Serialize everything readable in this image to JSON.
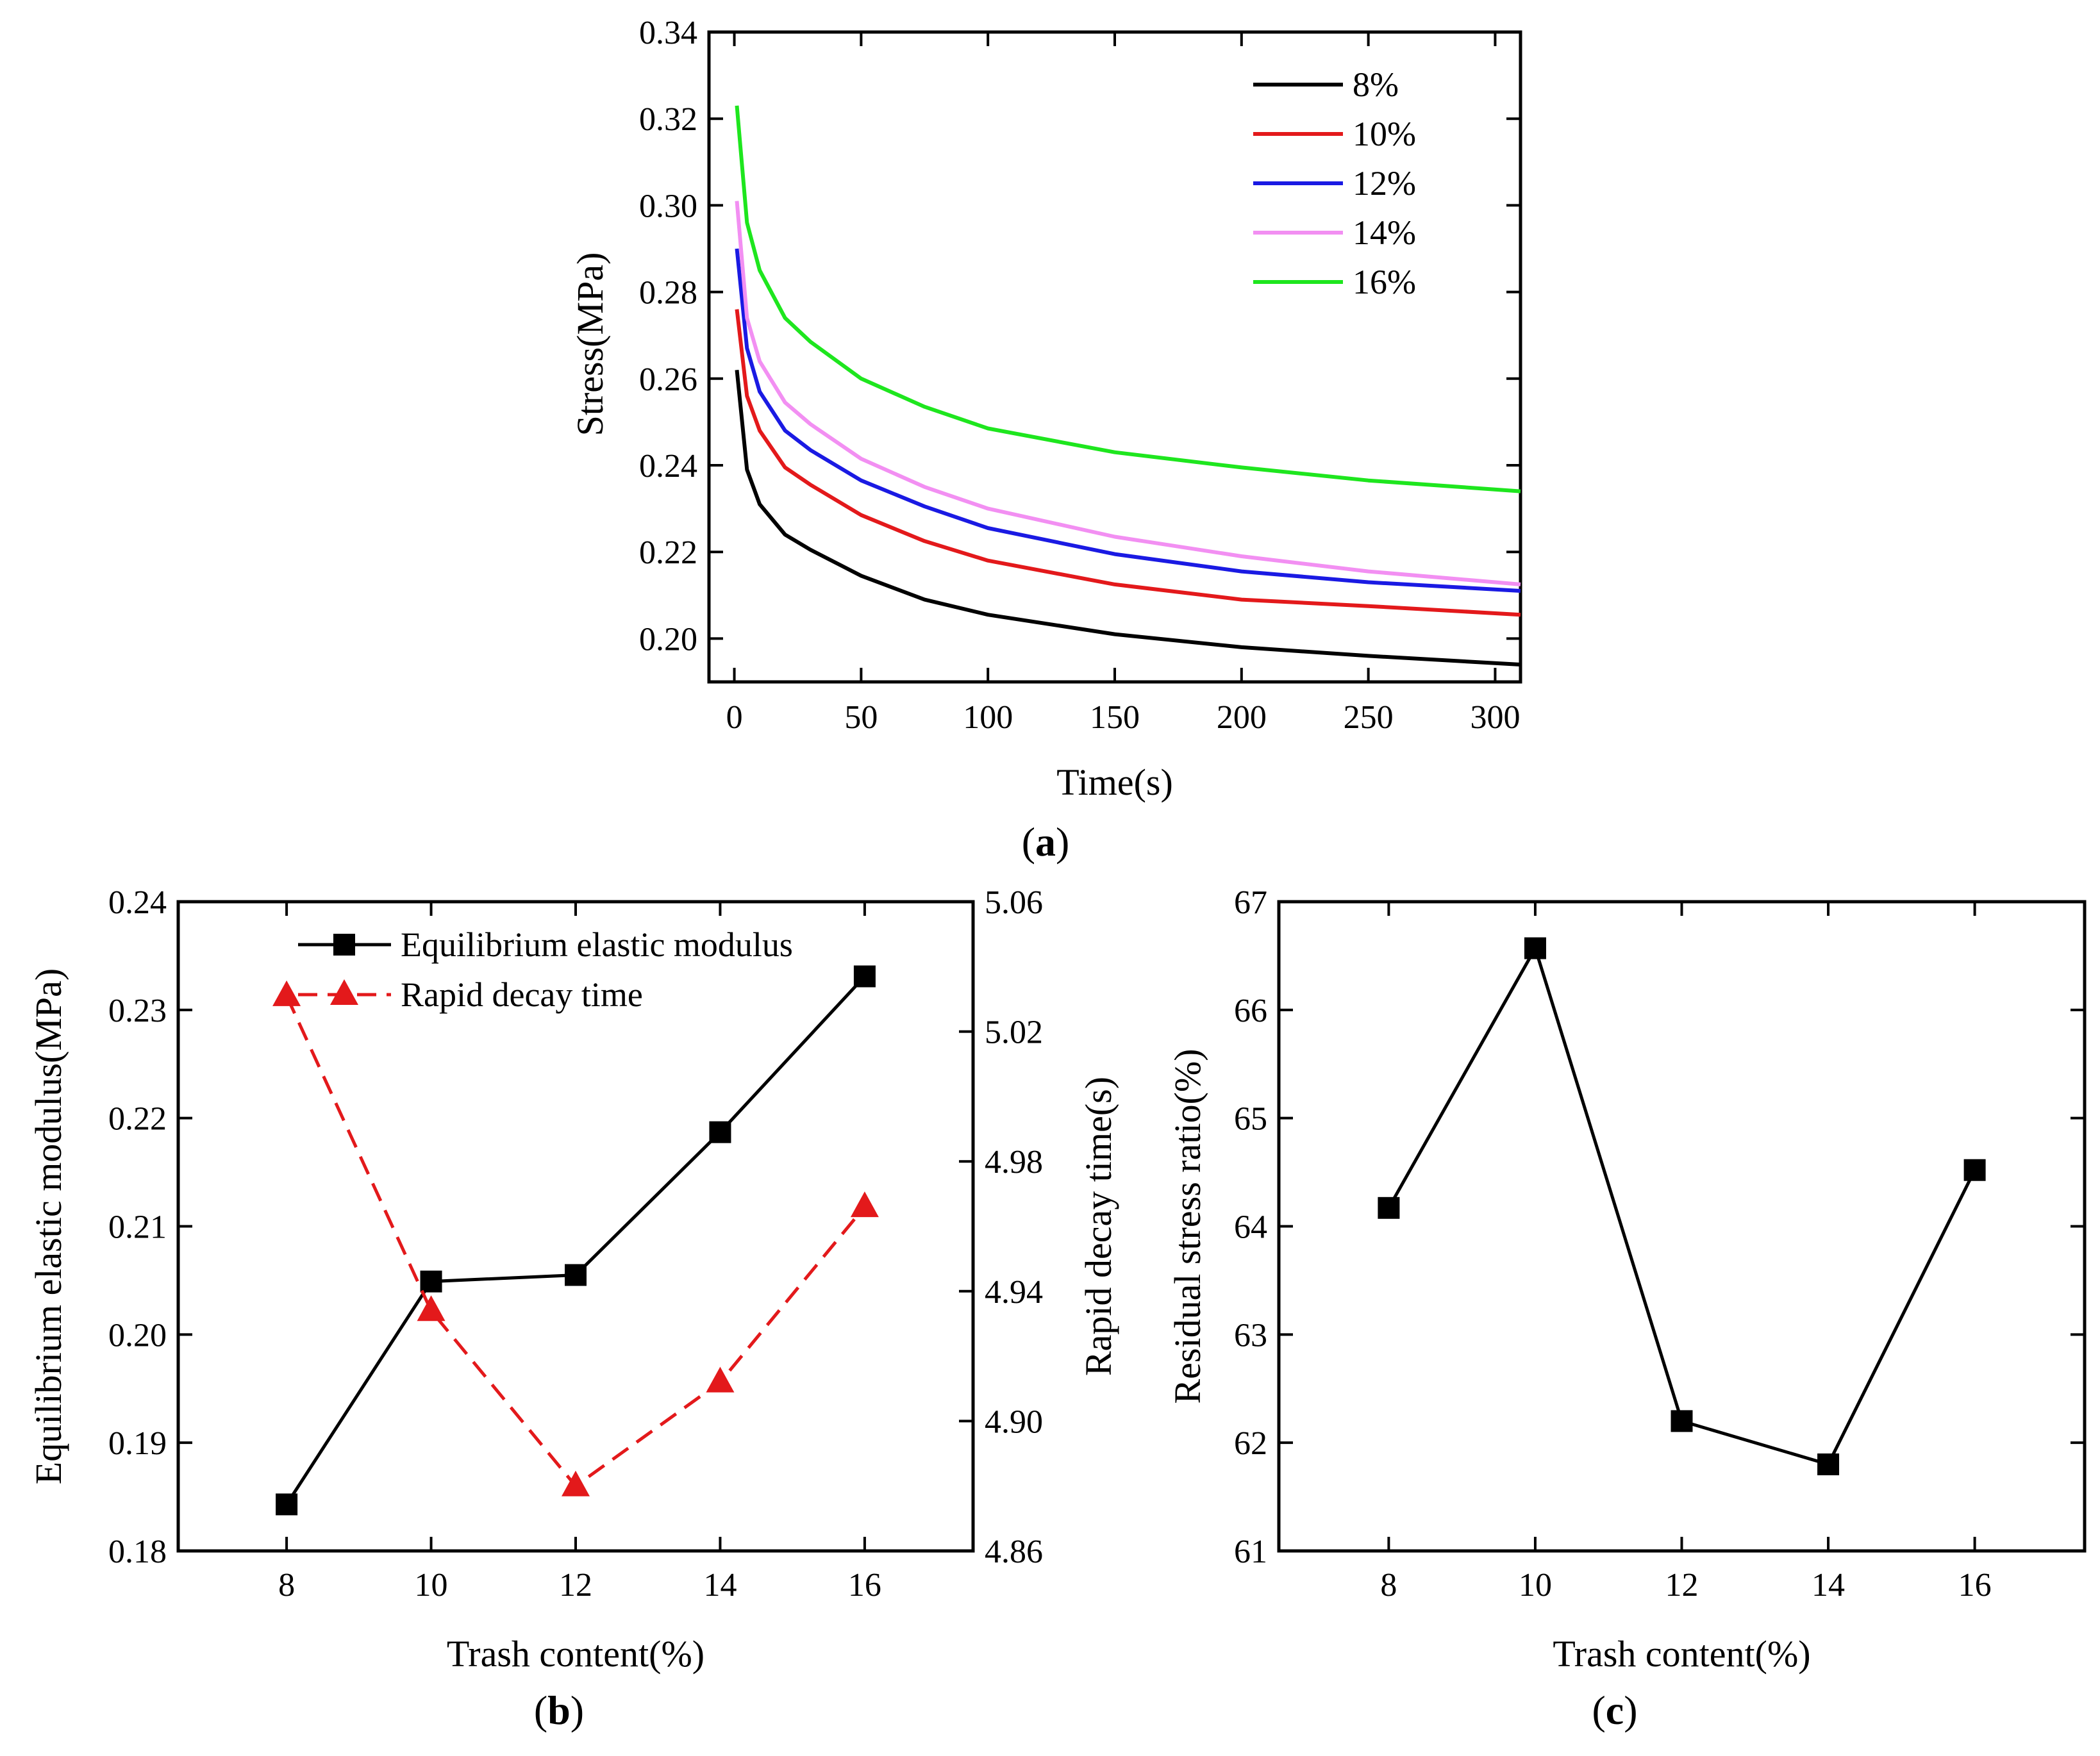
{
  "chart_data": [
    {
      "panel": "a",
      "type": "line",
      "xlabel": "Time(s)",
      "ylabel": "Stress(MPa)",
      "xlim": [
        -10,
        310
      ],
      "ylim": [
        0.19,
        0.34
      ],
      "xticks": [
        "0",
        "50",
        "100",
        "150",
        "200",
        "250",
        "300"
      ],
      "yticks": [
        "0.20",
        "0.22",
        "0.24",
        "0.26",
        "0.28",
        "0.30",
        "0.32",
        "0.34"
      ],
      "legend_position": "top-right",
      "x": [
        1,
        5,
        10,
        20,
        30,
        50,
        75,
        100,
        150,
        200,
        250,
        310
      ],
      "series": [
        {
          "name": "8%",
          "color": "#000000",
          "values": [
            0.262,
            0.239,
            0.231,
            0.224,
            0.2205,
            0.2145,
            0.209,
            0.2055,
            0.201,
            0.198,
            0.196,
            0.194
          ]
        },
        {
          "name": "10%",
          "color": "#e3191b",
          "values": [
            0.276,
            0.256,
            0.248,
            0.2395,
            0.2355,
            0.2285,
            0.2225,
            0.218,
            0.2125,
            0.209,
            0.2075,
            0.2055
          ]
        },
        {
          "name": "12%",
          "color": "#1a1ae3",
          "values": [
            0.29,
            0.267,
            0.257,
            0.248,
            0.2435,
            0.2365,
            0.2305,
            0.2255,
            0.2195,
            0.2155,
            0.213,
            0.211
          ]
        },
        {
          "name": "14%",
          "color": "#f28ff2",
          "values": [
            0.301,
            0.274,
            0.264,
            0.2545,
            0.2495,
            0.2415,
            0.235,
            0.23,
            0.2235,
            0.219,
            0.2155,
            0.2125
          ]
        },
        {
          "name": "16%",
          "color": "#1ee61e",
          "values": [
            0.323,
            0.296,
            0.285,
            0.274,
            0.2685,
            0.26,
            0.2535,
            0.2485,
            0.243,
            0.2395,
            0.2365,
            0.234
          ]
        }
      ]
    },
    {
      "panel": "b",
      "type": "line",
      "xlabel": "Trash content(%)",
      "ylabel": "Equilibrium elastic modulus(MPa)",
      "y2label": "Rapid decay time(s)",
      "xlim": [
        6.5,
        17.5
      ],
      "ylim": [
        0.18,
        0.24
      ],
      "y2lim": [
        4.86,
        5.06
      ],
      "xticks": [
        "8",
        "10",
        "12",
        "14",
        "16"
      ],
      "yticks": [
        "0.18",
        "0.19",
        "0.20",
        "0.21",
        "0.22",
        "0.23",
        "0.24"
      ],
      "y2ticks": [
        "4.86",
        "4.90",
        "4.94",
        "4.98",
        "5.02",
        "5.06"
      ],
      "legend_position": "top-center",
      "x": [
        8,
        10,
        12,
        14,
        16
      ],
      "series": [
        {
          "name": "Equilibrium elastic modulus",
          "axis": "left",
          "color": "#000000",
          "marker": "square",
          "dash": "solid",
          "values": [
            0.1843,
            0.2049,
            0.2055,
            0.2187,
            0.2331
          ]
        },
        {
          "name": "Rapid decay time",
          "axis": "right",
          "color": "#e3191b",
          "marker": "triangle",
          "dash": "dashed",
          "values": [
            5.031,
            4.934,
            4.88,
            4.912,
            4.966
          ]
        }
      ]
    },
    {
      "panel": "c",
      "type": "line",
      "xlabel": "Trash content(%)",
      "ylabel": "Residual stress ratio(%)",
      "xlim": [
        6.5,
        17.5
      ],
      "ylim": [
        61,
        67
      ],
      "xticks": [
        "8",
        "10",
        "12",
        "14",
        "16"
      ],
      "yticks": [
        "61",
        "62",
        "63",
        "64",
        "65",
        "66",
        "67"
      ],
      "x": [
        8,
        10,
        12,
        14,
        16
      ],
      "series": [
        {
          "name": "Residual stress ratio",
          "color": "#000000",
          "marker": "square",
          "values": [
            64.17,
            66.57,
            62.2,
            61.8,
            64.52
          ]
        }
      ]
    }
  ],
  "panel_labels": {
    "a": {
      "open": "(",
      "letter": "a",
      "close": ")"
    },
    "b": {
      "open": "(",
      "letter": "b",
      "close": ")"
    },
    "c": {
      "open": "(",
      "letter": "c",
      "close": ")"
    }
  }
}
